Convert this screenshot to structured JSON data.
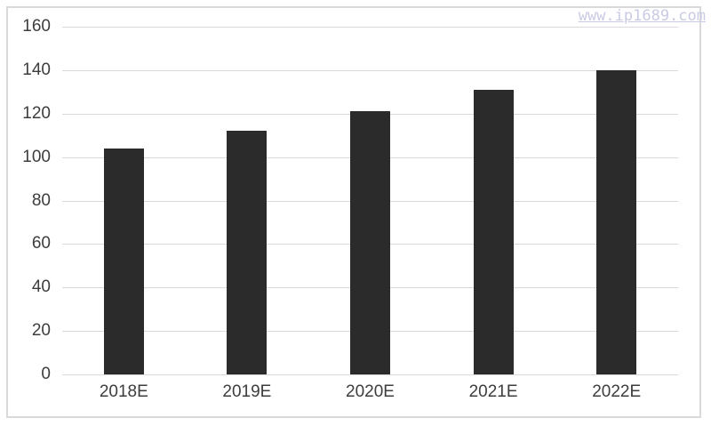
{
  "watermark": {
    "text": "www.ip1689.com",
    "color": "#c9cbe4"
  },
  "chart_data": {
    "type": "bar",
    "title": "",
    "xlabel": "",
    "ylabel": "",
    "categories": [
      "2018E",
      "2019E",
      "2020E",
      "2021E",
      "2022E"
    ],
    "values": [
      104,
      112,
      121,
      131,
      140
    ],
    "ylim": [
      0,
      160
    ],
    "yticks": [
      0,
      20,
      40,
      60,
      80,
      100,
      120,
      140,
      160
    ],
    "grid": true,
    "legend": "none",
    "colors": {
      "bar": "#2b2b2b",
      "gridline": "#d9d9d9",
      "axis_label": "#3d3d3d",
      "frame_border": "#d9d9d9",
      "background": "#ffffff"
    }
  }
}
